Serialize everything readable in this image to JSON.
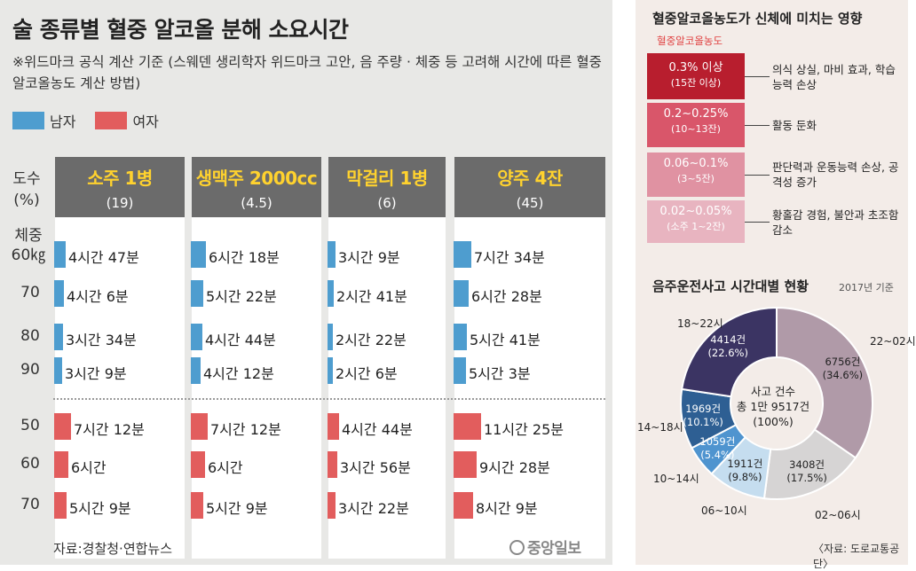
{
  "left": {
    "title": "술 종류별 혈중 알코올 분해 소요시간",
    "subtitle": "※위드마크 공식 계산 기준 (스웨덴 생리학자 위드마크 고안, 음 주량 · 체중 등 고려해 시간에 따른 혈중알코올농도 계산 방법)",
    "legend": {
      "male": "남자",
      "female": "여자"
    },
    "colors": {
      "male": "#4e9dcf",
      "female": "#e25d5d",
      "header": "#6b6b6b",
      "header_text": "#ffd22e"
    },
    "yaxis": {
      "abv_label": "도수 (%)",
      "weight_label": "체중 60㎏"
    },
    "source": "자료:경찰청·연합뉴스",
    "logo": "중앙일보"
  },
  "chart_data": [
    {
      "type": "bar",
      "title": "술 종류별 혈중 알코올 분해 소요시간",
      "unit": "minutes",
      "columns": [
        {
          "name": "소주 1병",
          "abv": "(19)"
        },
        {
          "name": "생맥주 2000cc",
          "abv": "(4.5)"
        },
        {
          "name": "막걸리 1병",
          "abv": "(6)"
        },
        {
          "name": "양주 4잔",
          "abv": "(45)"
        }
      ],
      "series": [
        {
          "name": "남자",
          "weights": [
            "60",
            "70",
            "80",
            "90"
          ],
          "values": [
            [
              287,
              246,
              214,
              189
            ],
            [
              378,
              322,
              284,
              252
            ],
            [
              189,
              161,
              142,
              126
            ],
            [
              454,
              388,
              341,
              303
            ]
          ],
          "labels": [
            [
              "4시간 47분",
              "4시간 6분",
              "3시간 34분",
              "3시간 9분"
            ],
            [
              "6시간 18분",
              "5시간 22분",
              "4시간 44분",
              "4시간 12분"
            ],
            [
              "3시간 9분",
              "2시간 41분",
              "2시간 22분",
              "2시간 6분"
            ],
            [
              "7시간 34분",
              "6시간 28분",
              "5시간 41분",
              "5시간 3분"
            ]
          ]
        },
        {
          "name": "여자",
          "weights": [
            "50",
            "60",
            "70"
          ],
          "values": [
            [
              432,
              360,
              309
            ],
            [
              432,
              360,
              309
            ],
            [
              284,
              236,
              202
            ],
            [
              685,
              568,
              489
            ]
          ],
          "labels": [
            [
              "7시간 12분",
              "6시간",
              "5시간 9분"
            ],
            [
              "7시간 12분",
              "6시간",
              "5시간 9분"
            ],
            [
              "4시간 44분",
              "3시간 56분",
              "3시간 22분"
            ],
            [
              "11시간 25분",
              "9시간 28분",
              "8시간 9분"
            ]
          ]
        }
      ]
    },
    {
      "type": "table",
      "title": "혈중알코올농도가 신체에 미치는 영향",
      "column_label": "혈중알코올농도",
      "rows": [
        {
          "bac": "0.3% 이상",
          "sub": "(15잔 이상)",
          "effect": "의식 상실, 마비 효과, 학습능력 손상",
          "color": "#b81e2e"
        },
        {
          "bac": "0.2~0.25%",
          "sub": "(10~13잔)",
          "effect": "활동 둔화",
          "color": "#d9566a"
        },
        {
          "bac": "0.06~0.1%",
          "sub": "(3~5잔)",
          "effect": "판단력과 운동능력 손상, 공격성 증가",
          "color": "#e092a2"
        },
        {
          "bac": "0.02~0.05%",
          "sub": "(소주 1~2잔)",
          "effect": "황홀감 경험, 불안과 초조함 감소",
          "color": "#e8b4c0"
        }
      ]
    },
    {
      "type": "pie",
      "title": "음주운전사고 시간대별 현황",
      "note": "2017년 기준",
      "source": "〈자료: 도로교통공단〉",
      "center": {
        "label": "사고 건수",
        "total": "총 1만 9517건",
        "pct": "(100%)"
      },
      "slices": [
        {
          "name": "22~02시",
          "count": "6756건",
          "pct": "(34.6%)",
          "value": 6756,
          "color": "#b09aa8"
        },
        {
          "name": "02~06시",
          "count": "3408건",
          "pct": "(17.5%)",
          "value": 3408,
          "color": "#d6d4d4"
        },
        {
          "name": "06~10시",
          "count": "1911건",
          "pct": "(9.8%)",
          "value": 1911,
          "color": "#c5ddef"
        },
        {
          "name": "10~14시",
          "count": "1059건",
          "pct": "(5.4%)",
          "value": 1059,
          "color": "#4f94cf"
        },
        {
          "name": "14~18시",
          "count": "1969건",
          "pct": "(10.1%)",
          "value": 1969,
          "color": "#2e5f93"
        },
        {
          "name": "18~22시",
          "count": "4414건",
          "pct": "(22.6%)",
          "value": 4414,
          "color": "#3b3463"
        }
      ]
    }
  ]
}
